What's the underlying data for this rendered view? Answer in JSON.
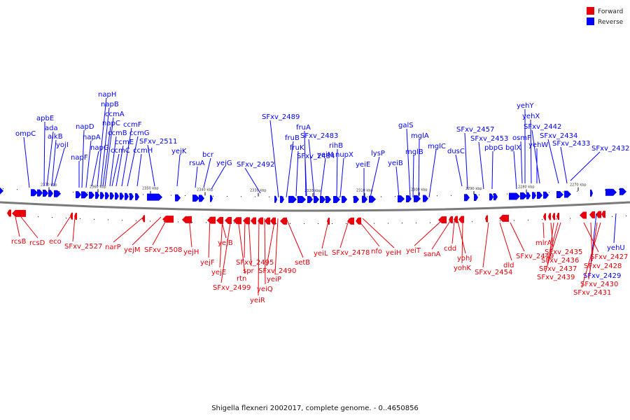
{
  "legend": {
    "forward_label": "Forward",
    "reverse_label": "Reverse",
    "forward_color": "#e8000b",
    "reverse_color": "#0000ff"
  },
  "caption": "Shigella flexneri 2002017, complete genome. - 0..4650856",
  "scale_ticks": [
    "2370 kbp",
    "2360 kbp",
    "2350 kbp",
    "2340 kbp",
    "2330 kbp",
    "2320 kbp",
    "2310 kbp",
    "2300 kbp",
    "2290 kbp",
    "2280 kbp",
    "2270 kbp"
  ],
  "reverse_labels": [
    "ompC",
    "apbE",
    "ada",
    "alkB",
    "yojI",
    "napF",
    "napD",
    "napA",
    "napG",
    "napH",
    "napB",
    "ccmA",
    "napC",
    "ccmB",
    "ccmE",
    "ccmC",
    "ccmF",
    "ccmG",
    "ccmH",
    "SFxv_2511",
    "yejK",
    "rsuA",
    "bcr",
    "yejG",
    "SFxv_2492",
    "SFxv_2489",
    "fruB",
    "fruK",
    "fruA",
    "SFxv_2484",
    "SFxv_2483",
    "yeiM",
    "rihB",
    "nupX",
    "yeiE",
    "lysP",
    "yeiB",
    "galS",
    "mglB",
    "mglA",
    "mglC",
    "dusC",
    "SFxv_2457",
    "SFxv_2453",
    "pbpG",
    "bglX",
    "yehY",
    "osmF",
    "yehX",
    "SFxv_2442",
    "yehW",
    "SFxv_2434",
    "SFxv_2433",
    "SFxv_2432",
    "yehU",
    "SFxv_2429"
  ],
  "forward_labels": [
    "rcsB",
    "rcsD",
    "eco",
    "SFxv_2527",
    "narP",
    "yejM",
    "SFxv_2508",
    "yejH",
    "yejF",
    "yejB",
    "yejE",
    "SFxv_2499",
    "rtn",
    "SFxv_2495",
    "spr",
    "yeiR",
    "yeiQ",
    "SFxv_2490",
    "yeiP",
    "setB",
    "yeiL",
    "SFxv_2478",
    "nfo",
    "yeiH",
    "yeiT",
    "sanA",
    "cdd",
    "yohJ",
    "yohK",
    "SFxv_2454",
    "dld",
    "SFxv_2449",
    "mlrA",
    "SFxv_2435",
    "SFxv_2436",
    "SFxv_2437",
    "SFxv_2439",
    "SFxv_2427",
    "SFxv_2428",
    "SFxv_2430",
    "SFxv_2431"
  ]
}
